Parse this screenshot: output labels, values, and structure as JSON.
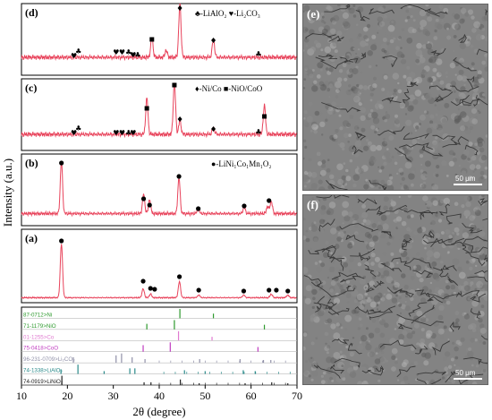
{
  "xrd": {
    "y_axis_label": "Intensity (a.u.)",
    "x_axis_label": "2θ (degree)",
    "x_ticks": [
      "10",
      "20",
      "30",
      "40",
      "50",
      "60",
      "70"
    ],
    "panels": {
      "d": {
        "label": "(d)",
        "legend": "♣-LiAlO₂  ♥-Li₂CO₃"
      },
      "c": {
        "label": "(c)",
        "legend": "♦-Ni/Co  ■-NiO/CoO"
      },
      "b": {
        "label": "(b)",
        "legend": "●-LiNi₁Co₁Mn₁O₂"
      },
      "a": {
        "label": "(a)"
      }
    },
    "references": [
      {
        "label": "87-0712>Ni",
        "color": "#2e9a2e"
      },
      {
        "label": "71-1179>NiO",
        "color": "#2e9a2e"
      },
      {
        "label": "01-1255>Co",
        "color": "#e07ad0"
      },
      {
        "label": "75-0418>CoO",
        "color": "#c03cc0"
      },
      {
        "label": "96-231-0709>Li₂CO₃",
        "color": "#9090a8"
      },
      {
        "label": "74-1338>LiAlO₂",
        "color": "#2a8a8a"
      },
      {
        "label": "74-0919>LiNiO₂",
        "color": "#222222"
      }
    ],
    "line_color": "#e8435b"
  },
  "sem": {
    "e": {
      "label": "(e)",
      "scale": "50 μm"
    },
    "f": {
      "label": "(f)",
      "scale": "50 μm"
    }
  }
}
